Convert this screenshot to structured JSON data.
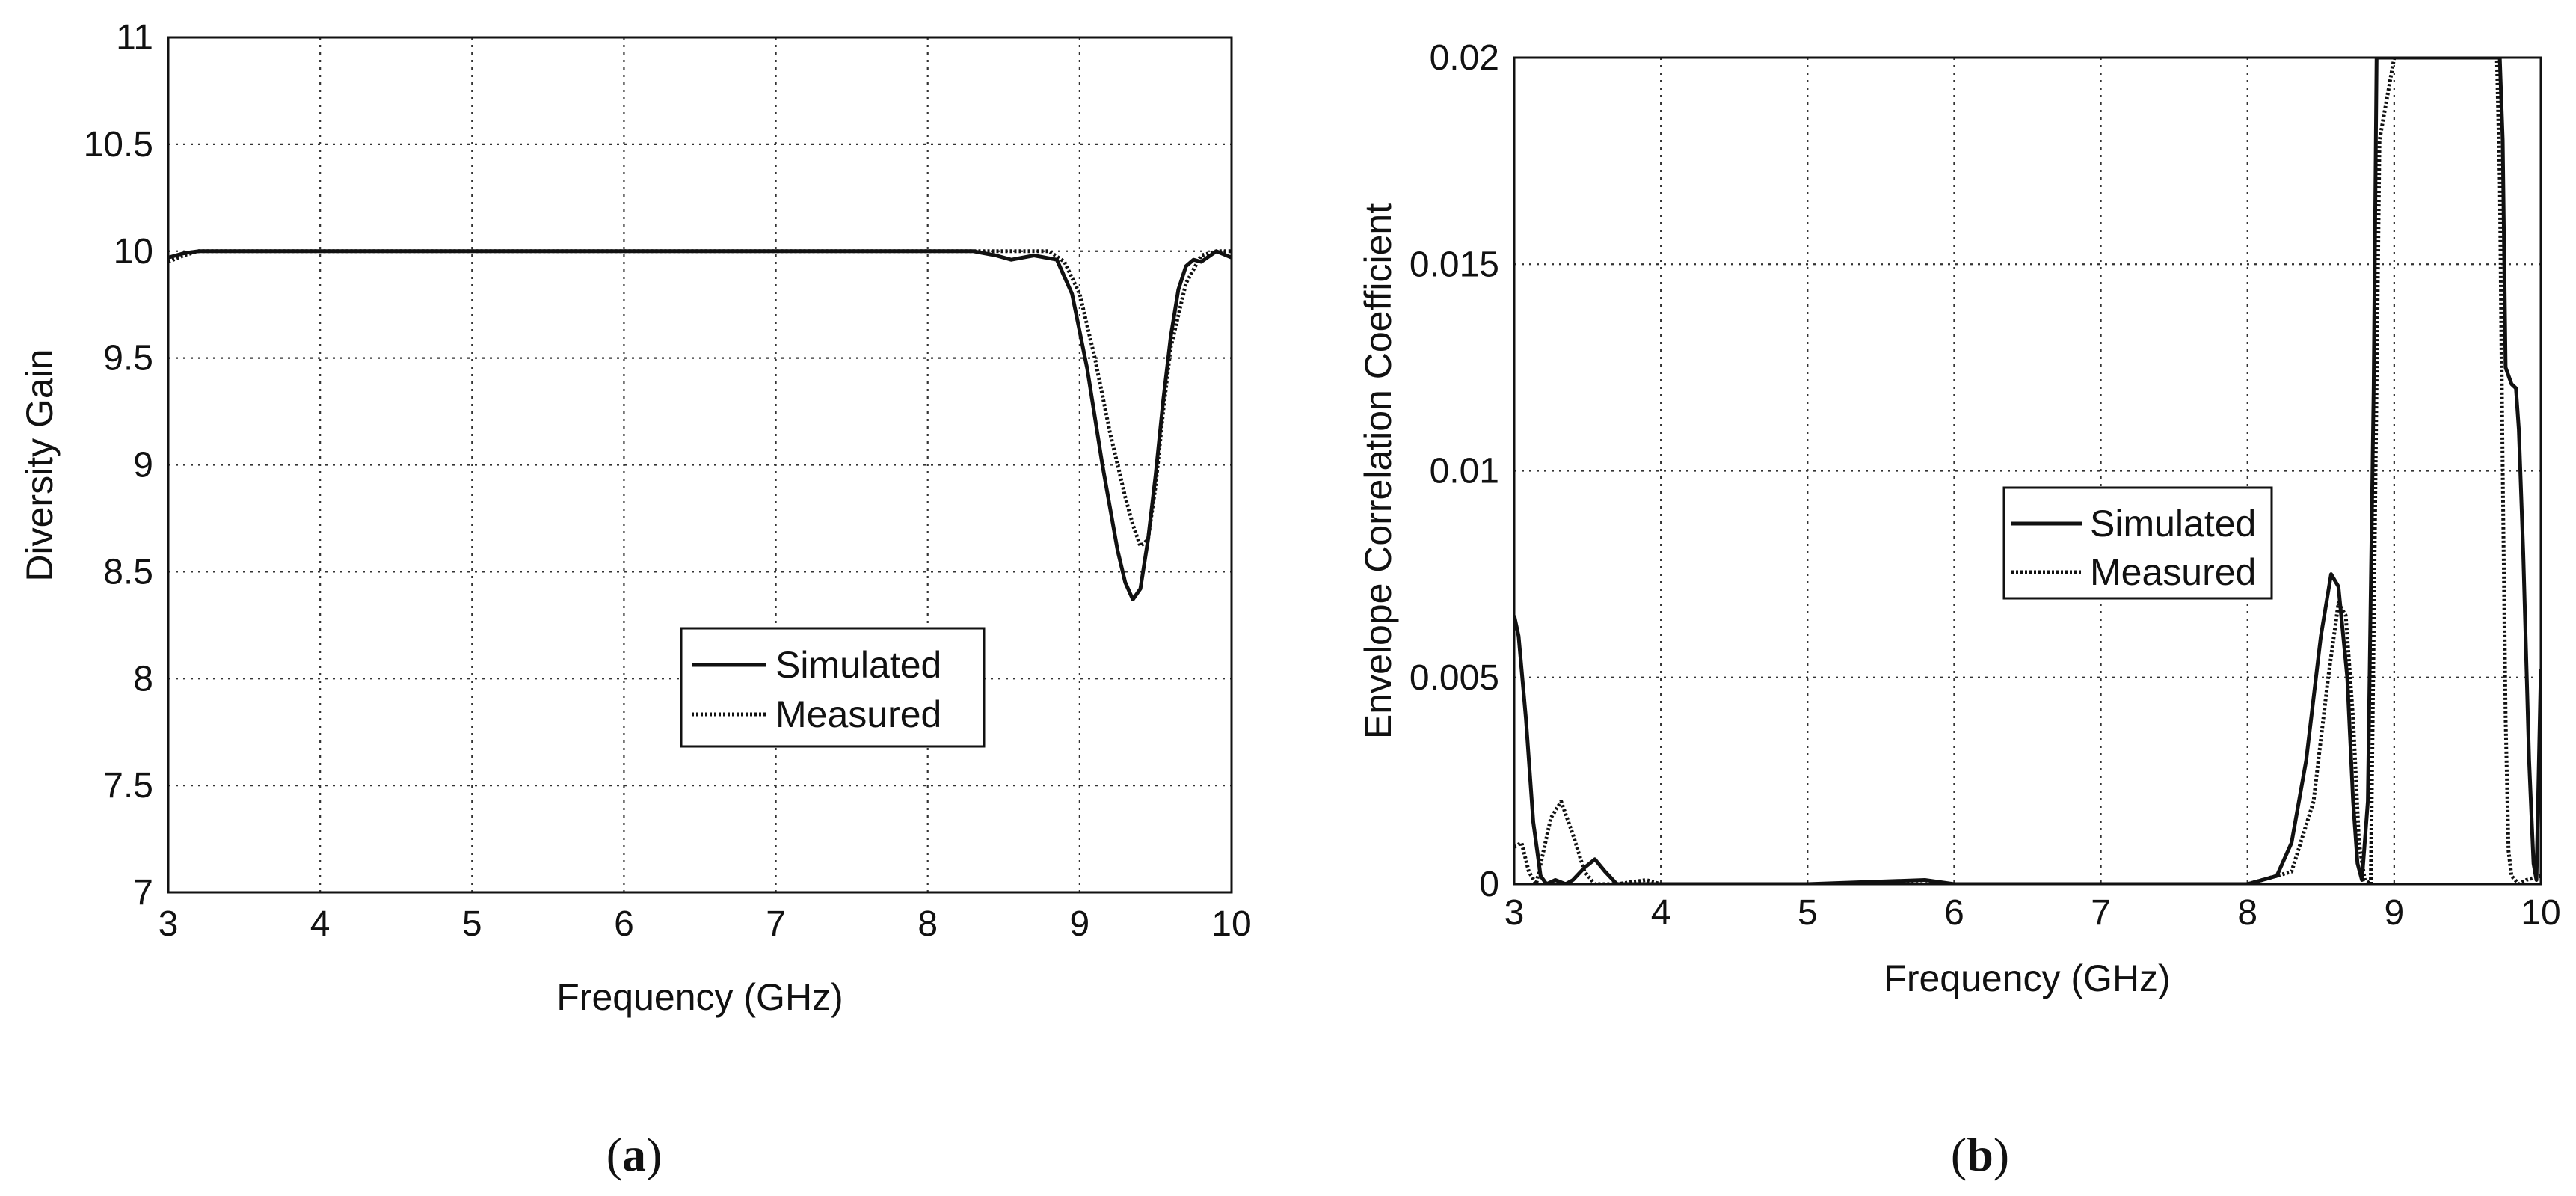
{
  "chart_data": [
    {
      "type": "line",
      "panel_label": "a",
      "title": "",
      "xlabel": "Frequency (GHz)",
      "ylabel": "Diversity Gain",
      "xlim": [
        3,
        10
      ],
      "ylim": [
        7,
        11
      ],
      "xticks": [
        "3",
        "4",
        "5",
        "6",
        "7",
        "8",
        "9",
        "10"
      ],
      "yticks": [
        "7",
        "7.5",
        "8",
        "8.5",
        "9",
        "9.5",
        "10",
        "10.5",
        "11"
      ],
      "grid": true,
      "legend_position": "lower-right",
      "series": [
        {
          "name": "Simulated",
          "style": "solid",
          "x": [
            3.0,
            3.1,
            3.2,
            4.0,
            5.0,
            6.0,
            7.0,
            8.0,
            8.3,
            8.45,
            8.55,
            8.7,
            8.85,
            8.95,
            9.05,
            9.15,
            9.25,
            9.3,
            9.35,
            9.4,
            9.45,
            9.5,
            9.55,
            9.6,
            9.65,
            9.7,
            9.75,
            9.8,
            9.9,
            10.0
          ],
          "y": [
            9.97,
            9.99,
            10.0,
            10.0,
            10.0,
            10.0,
            10.0,
            10.0,
            10.0,
            9.98,
            9.96,
            9.98,
            9.96,
            9.8,
            9.45,
            9.0,
            8.6,
            8.45,
            8.37,
            8.42,
            8.65,
            8.95,
            9.3,
            9.6,
            9.82,
            9.93,
            9.96,
            9.95,
            10.0,
            9.97
          ]
        },
        {
          "name": "Measured",
          "style": "dotted",
          "x": [
            3.0,
            3.1,
            3.2,
            4.0,
            5.0,
            6.0,
            7.0,
            8.0,
            8.6,
            8.8,
            8.9,
            9.0,
            9.1,
            9.2,
            9.3,
            9.35,
            9.4,
            9.45,
            9.5,
            9.55,
            9.6,
            9.7,
            9.8,
            9.9,
            10.0
          ],
          "y": [
            9.95,
            9.98,
            10.0,
            10.0,
            10.0,
            10.0,
            10.0,
            10.0,
            10.0,
            10.0,
            9.95,
            9.8,
            9.5,
            9.15,
            8.85,
            8.72,
            8.62,
            8.65,
            8.9,
            9.25,
            9.55,
            9.85,
            9.98,
            10.0,
            10.0
          ]
        }
      ]
    },
    {
      "type": "line",
      "panel_label": "b",
      "title": "",
      "xlabel": "Frequency (GHz)",
      "ylabel": "Envelope Correlation Coefficient",
      "xlim": [
        3,
        10
      ],
      "ylim": [
        0,
        0.02
      ],
      "xticks": [
        "3",
        "4",
        "5",
        "6",
        "7",
        "8",
        "9",
        "10"
      ],
      "yticks": [
        "0",
        "0.005",
        "0.01",
        "0.015",
        "0.02"
      ],
      "grid": true,
      "legend_position": "middle-right",
      "series": [
        {
          "name": "Simulated",
          "style": "solid",
          "x": [
            3.0,
            3.03,
            3.08,
            3.13,
            3.18,
            3.22,
            3.28,
            3.35,
            3.4,
            3.48,
            3.55,
            3.62,
            3.7,
            4.0,
            5.0,
            5.8,
            6.0,
            7.0,
            8.0,
            8.2,
            8.3,
            8.4,
            8.5,
            8.57,
            8.62,
            8.68,
            8.72,
            8.75,
            8.78,
            8.82,
            8.86,
            8.88,
            9.0,
            9.6,
            9.68,
            9.72,
            9.74,
            9.76,
            9.8,
            9.83,
            9.85,
            9.88,
            9.92,
            9.95,
            9.97,
            10.0
          ],
          "y": [
            0.0065,
            0.006,
            0.004,
            0.0015,
            0.0002,
            0.0,
            0.0001,
            0.0,
            0.0001,
            0.0004,
            0.0006,
            0.0003,
            0.0,
            0.0,
            0.0,
            0.0001,
            0.0,
            0.0,
            0.0,
            0.0002,
            0.001,
            0.003,
            0.006,
            0.0075,
            0.0072,
            0.005,
            0.002,
            0.0005,
            0.0001,
            0.002,
            0.012,
            0.02,
            0.02,
            0.02,
            0.02,
            0.02,
            0.018,
            0.0125,
            0.0121,
            0.012,
            0.011,
            0.008,
            0.003,
            0.0005,
            0.0001,
            0.0052
          ]
        },
        {
          "name": "Measured",
          "style": "dotted",
          "x": [
            3.0,
            3.05,
            3.1,
            3.15,
            3.2,
            3.25,
            3.32,
            3.4,
            3.48,
            3.55,
            3.7,
            3.9,
            4.0,
            5.0,
            6.0,
            7.0,
            8.0,
            8.3,
            8.45,
            8.55,
            8.62,
            8.67,
            8.72,
            8.76,
            8.8,
            8.84,
            8.9,
            9.0,
            9.6,
            9.7,
            9.72,
            9.74,
            9.76,
            9.78,
            9.8,
            9.85,
            9.9,
            10.0
          ],
          "y": [
            0.0009,
            0.001,
            0.0003,
            0.0,
            0.0008,
            0.0016,
            0.002,
            0.0012,
            0.0003,
            0.0,
            0.0,
            0.0001,
            0.0,
            0.0,
            0.0,
            0.0,
            0.0,
            0.0003,
            0.002,
            0.005,
            0.0068,
            0.0065,
            0.004,
            0.001,
            0.0001,
            0.0,
            0.018,
            0.02,
            0.02,
            0.02,
            0.017,
            0.01,
            0.004,
            0.0008,
            0.0002,
            0.0,
            0.0001,
            0.0002
          ]
        }
      ]
    }
  ]
}
